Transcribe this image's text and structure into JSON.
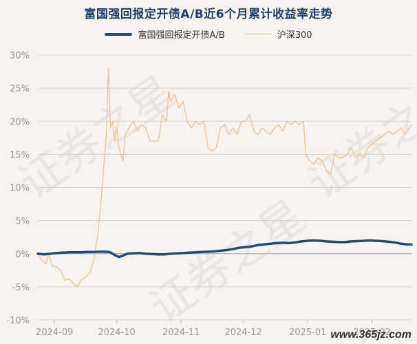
{
  "title": "富国强回报定开债A/B近6个月累计收益率走势",
  "watermark_bg": "证券之星",
  "watermark_corner": "www.365jz.com",
  "colors": {
    "fund": "#1f4a7a",
    "hs300": "#f0c090",
    "grid": "#d8d4cf",
    "tick": "#999999"
  },
  "chart_data": {
    "type": "line",
    "title": "富国强回报定开债A/B近6个月累计收益率走势",
    "xlabel": "",
    "ylabel": "",
    "ylim": [
      -10,
      30
    ],
    "yticks": [
      30,
      25,
      20,
      15,
      10,
      5,
      0,
      -5,
      -10
    ],
    "ytick_labels": [
      "30%",
      "25%",
      "20%",
      "15%",
      "10%",
      "5%",
      "0%",
      "-5%",
      "-10%"
    ],
    "xlim": [
      0,
      180
    ],
    "xticks": [
      {
        "x": 8,
        "label": "2024-09"
      },
      {
        "x": 38,
        "label": "2024-10"
      },
      {
        "x": 69,
        "label": "2024-11"
      },
      {
        "x": 99,
        "label": "2024-12"
      },
      {
        "x": 130,
        "label": "2025-01"
      },
      {
        "x": 161,
        "label": "2025-02"
      }
    ],
    "legend_position": "top",
    "grid": "horizontal",
    "series": [
      {
        "name": "富国强回报定开债A/B",
        "points": [
          [
            0,
            0
          ],
          [
            3,
            -0.1
          ],
          [
            6,
            0
          ],
          [
            9,
            0.1
          ],
          [
            12,
            0.15
          ],
          [
            15,
            0.2
          ],
          [
            18,
            0.2
          ],
          [
            21,
            0.2
          ],
          [
            24,
            0.25
          ],
          [
            27,
            0.25
          ],
          [
            30,
            0.3
          ],
          [
            33,
            0.3
          ],
          [
            35,
            0.2
          ],
          [
            37,
            -0.2
          ],
          [
            39,
            -0.5
          ],
          [
            41,
            -0.3
          ],
          [
            43,
            0
          ],
          [
            46,
            0.05
          ],
          [
            49,
            0.1
          ],
          [
            52,
            0
          ],
          [
            55,
            -0.05
          ],
          [
            58,
            -0.1
          ],
          [
            61,
            -0.1
          ],
          [
            64,
            0
          ],
          [
            67,
            0.05
          ],
          [
            70,
            0.1
          ],
          [
            73,
            0.15
          ],
          [
            76,
            0.2
          ],
          [
            79,
            0.25
          ],
          [
            82,
            0.3
          ],
          [
            85,
            0.35
          ],
          [
            88,
            0.45
          ],
          [
            91,
            0.55
          ],
          [
            94,
            0.7
          ],
          [
            97,
            0.9
          ],
          [
            100,
            1.0
          ],
          [
            103,
            1.1
          ],
          [
            106,
            1.3
          ],
          [
            109,
            1.4
          ],
          [
            112,
            1.5
          ],
          [
            115,
            1.6
          ],
          [
            118,
            1.65
          ],
          [
            121,
            1.6
          ],
          [
            124,
            1.7
          ],
          [
            127,
            1.85
          ],
          [
            130,
            1.95
          ],
          [
            133,
            2.0
          ],
          [
            136,
            1.95
          ],
          [
            139,
            1.85
          ],
          [
            142,
            1.8
          ],
          [
            145,
            1.75
          ],
          [
            148,
            1.75
          ],
          [
            151,
            1.85
          ],
          [
            154,
            1.9
          ],
          [
            157,
            1.95
          ],
          [
            160,
            2.0
          ],
          [
            163,
            1.95
          ],
          [
            166,
            1.9
          ],
          [
            169,
            1.8
          ],
          [
            172,
            1.7
          ],
          [
            175,
            1.5
          ],
          [
            178,
            1.4
          ],
          [
            180,
            1.4
          ]
        ]
      },
      {
        "name": "沪深300",
        "points": [
          [
            0,
            0
          ],
          [
            2,
            -1
          ],
          [
            4,
            -1.5
          ],
          [
            5,
            0
          ],
          [
            7,
            -1.8
          ],
          [
            9,
            -2
          ],
          [
            11,
            -2.5
          ],
          [
            13,
            -4
          ],
          [
            15,
            -3.8
          ],
          [
            17,
            -4.5
          ],
          [
            19,
            -5
          ],
          [
            21,
            -4
          ],
          [
            23,
            -3.5
          ],
          [
            25,
            -3
          ],
          [
            27,
            -1
          ],
          [
            29,
            3
          ],
          [
            31,
            10
          ],
          [
            33,
            18
          ],
          [
            34,
            28
          ],
          [
            35,
            19
          ],
          [
            36,
            20
          ],
          [
            37,
            17
          ],
          [
            38,
            19
          ],
          [
            39,
            16
          ],
          [
            40,
            15
          ],
          [
            41,
            14
          ],
          [
            42,
            18
          ],
          [
            44,
            19
          ],
          [
            46,
            20
          ],
          [
            48,
            18.5
          ],
          [
            50,
            19.5
          ],
          [
            52,
            19
          ],
          [
            54,
            17
          ],
          [
            56,
            17
          ],
          [
            58,
            17
          ],
          [
            60,
            21
          ],
          [
            62,
            20
          ],
          [
            63,
            24.5
          ],
          [
            64,
            23
          ],
          [
            66,
            24
          ],
          [
            68,
            22
          ],
          [
            70,
            23
          ],
          [
            72,
            20
          ],
          [
            74,
            19
          ],
          [
            76,
            20
          ],
          [
            78,
            19.5
          ],
          [
            80,
            20
          ],
          [
            82,
            16
          ],
          [
            84,
            15.5
          ],
          [
            86,
            16
          ],
          [
            88,
            19
          ],
          [
            90,
            19.5
          ],
          [
            92,
            18
          ],
          [
            94,
            19
          ],
          [
            96,
            18
          ],
          [
            98,
            20
          ],
          [
            100,
            20
          ],
          [
            102,
            21
          ],
          [
            104,
            18.5
          ],
          [
            106,
            18
          ],
          [
            108,
            19
          ],
          [
            110,
            18.5
          ],
          [
            112,
            18
          ],
          [
            114,
            19
          ],
          [
            116,
            19.5
          ],
          [
            118,
            18.5
          ],
          [
            120,
            20
          ],
          [
            122,
            19.5
          ],
          [
            124,
            20
          ],
          [
            126,
            19.5
          ],
          [
            128,
            20
          ],
          [
            129,
            15
          ],
          [
            131,
            14
          ],
          [
            133,
            13.5
          ],
          [
            135,
            14.5
          ],
          [
            137,
            14
          ],
          [
            139,
            12.5
          ],
          [
            141,
            12
          ],
          [
            143,
            15
          ],
          [
            145,
            14.5
          ],
          [
            147,
            14.5
          ],
          [
            149,
            15
          ],
          [
            151,
            16
          ],
          [
            153,
            14.5
          ],
          [
            155,
            15
          ],
          [
            157,
            14.5
          ],
          [
            159,
            16
          ],
          [
            161,
            16.5
          ],
          [
            163,
            17
          ],
          [
            165,
            17.5
          ],
          [
            167,
            18
          ],
          [
            169,
            18.5
          ],
          [
            171,
            18
          ],
          [
            173,
            18.5
          ],
          [
            175,
            19
          ],
          [
            177,
            18
          ],
          [
            179,
            19
          ],
          [
            180,
            19.5
          ]
        ]
      }
    ]
  }
}
